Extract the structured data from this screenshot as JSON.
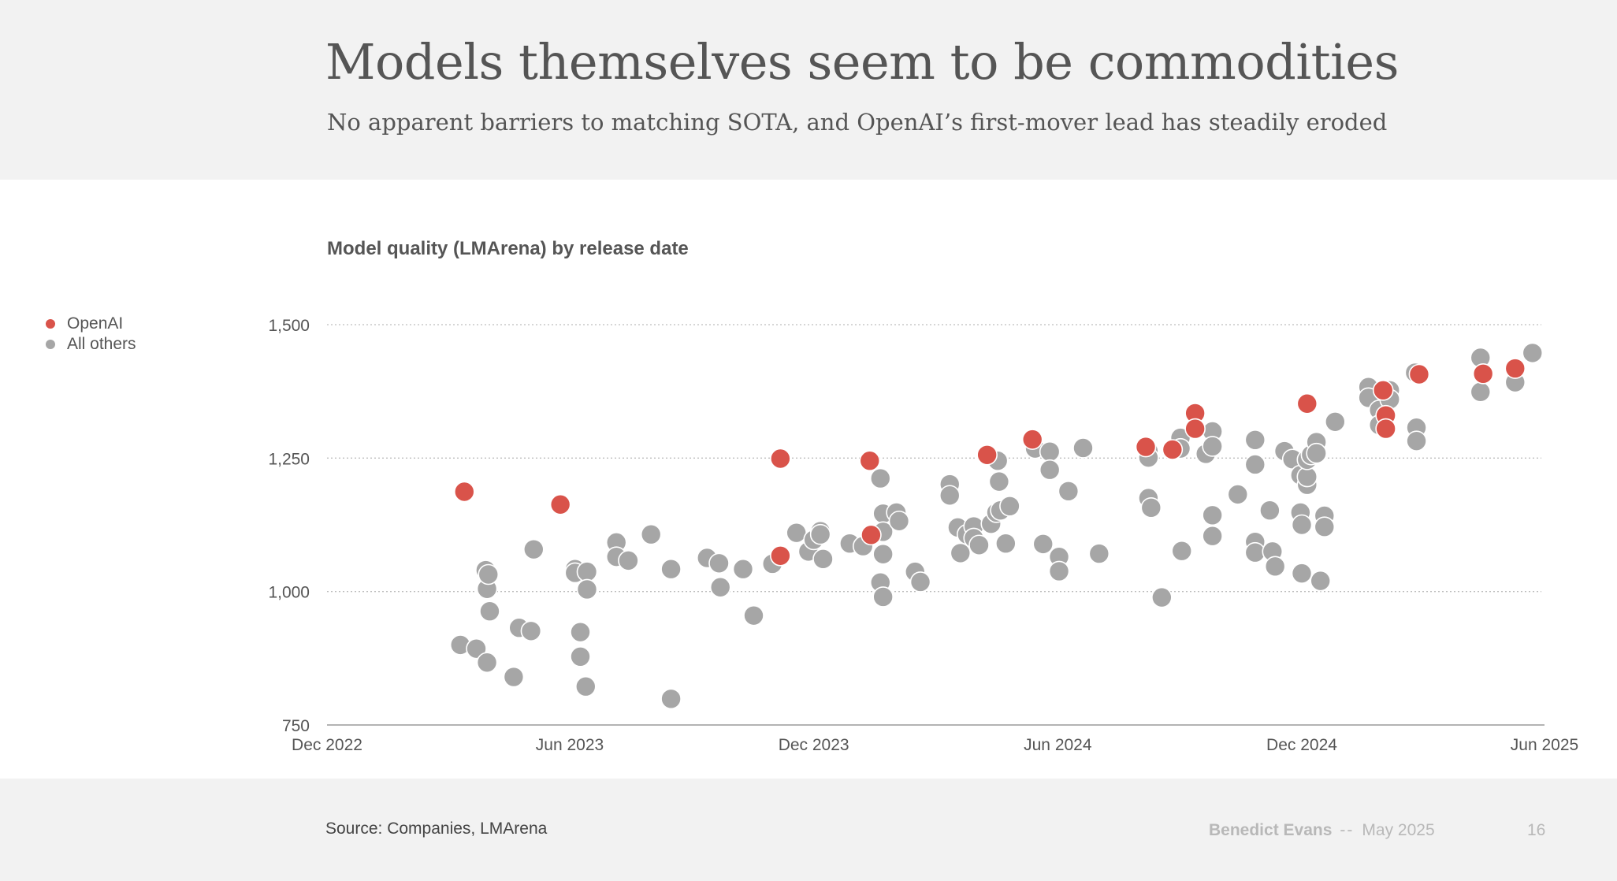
{
  "header": {
    "title": "Models themselves seem to be commodities",
    "subtitle": "No apparent barriers to matching SOTA, and OpenAI’s first-mover lead has steadily eroded"
  },
  "colors": {
    "openai": "#d9534a",
    "others": "#a6a6a6",
    "background": "#f2f2f2",
    "panel": "#ffffff",
    "text": "#555555"
  },
  "legend": {
    "position": "top-left",
    "items": [
      {
        "label": "OpenAI",
        "color": "#d9534a"
      },
      {
        "label": "All others",
        "color": "#a6a6a6"
      }
    ]
  },
  "chart_data": {
    "type": "scatter",
    "title": "Model quality (LMArena) by release date",
    "xlabel": "",
    "ylabel": "",
    "x_type": "date",
    "xlim": [
      "2022-12-01",
      "2025-06-01"
    ],
    "ylim": [
      750,
      1500
    ],
    "x_ticks": [
      {
        "value": "2022-12-01",
        "label": "Dec 2022"
      },
      {
        "value": "2023-06-01",
        "label": "Jun 2023"
      },
      {
        "value": "2023-12-01",
        "label": "Dec 2023"
      },
      {
        "value": "2024-06-01",
        "label": "Jun 2024"
      },
      {
        "value": "2024-12-01",
        "label": "Dec 2024"
      },
      {
        "value": "2025-06-01",
        "label": "Jun 2025"
      }
    ],
    "y_ticks": [
      {
        "value": 750,
        "label": "750"
      },
      {
        "value": 1000,
        "label": "1,000"
      },
      {
        "value": 1250,
        "label": "1,250"
      },
      {
        "value": 1500,
        "label": "1,500"
      }
    ],
    "grid": "horizontal dotted",
    "series": [
      {
        "name": "OpenAI",
        "color": "#d9534a",
        "points": [
          {
            "x": "2023-03-14",
            "y": 1187
          },
          {
            "x": "2023-05-25",
            "y": 1163
          },
          {
            "x": "2023-11-06",
            "y": 1067
          },
          {
            "x": "2023-11-06",
            "y": 1249
          },
          {
            "x": "2024-01-12",
            "y": 1245
          },
          {
            "x": "2024-01-13",
            "y": 1106
          },
          {
            "x": "2024-04-09",
            "y": 1256
          },
          {
            "x": "2024-05-13",
            "y": 1285
          },
          {
            "x": "2024-08-06",
            "y": 1271
          },
          {
            "x": "2024-08-26",
            "y": 1266
          },
          {
            "x": "2024-09-12",
            "y": 1334
          },
          {
            "x": "2024-09-12",
            "y": 1305
          },
          {
            "x": "2024-12-05",
            "y": 1352
          },
          {
            "x": "2025-01-31",
            "y": 1377
          },
          {
            "x": "2025-02-02",
            "y": 1330
          },
          {
            "x": "2025-02-02",
            "y": 1305
          },
          {
            "x": "2025-02-27",
            "y": 1407
          },
          {
            "x": "2025-04-16",
            "y": 1408
          },
          {
            "x": "2025-05-10",
            "y": 1418
          }
        ]
      },
      {
        "name": "All others",
        "color": "#a6a6a6",
        "points": [
          {
            "x": "2023-03-11",
            "y": 900
          },
          {
            "x": "2023-03-23",
            "y": 893
          },
          {
            "x": "2023-03-31",
            "y": 867
          },
          {
            "x": "2023-03-30",
            "y": 1040
          },
          {
            "x": "2023-03-31",
            "y": 1005
          },
          {
            "x": "2023-04-01",
            "y": 1032
          },
          {
            "x": "2023-04-02",
            "y": 963
          },
          {
            "x": "2023-04-20",
            "y": 840
          },
          {
            "x": "2023-04-24",
            "y": 932
          },
          {
            "x": "2023-05-03",
            "y": 926
          },
          {
            "x": "2023-05-05",
            "y": 1079
          },
          {
            "x": "2023-06-05",
            "y": 1042
          },
          {
            "x": "2023-06-05",
            "y": 1035
          },
          {
            "x": "2023-06-09",
            "y": 924
          },
          {
            "x": "2023-06-09",
            "y": 878
          },
          {
            "x": "2023-06-13",
            "y": 822
          },
          {
            "x": "2023-06-14",
            "y": 1037
          },
          {
            "x": "2023-06-14",
            "y": 1004
          },
          {
            "x": "2023-07-06",
            "y": 1092
          },
          {
            "x": "2023-07-06",
            "y": 1065
          },
          {
            "x": "2023-07-15",
            "y": 1058
          },
          {
            "x": "2023-08-01",
            "y": 1107
          },
          {
            "x": "2023-08-16",
            "y": 799
          },
          {
            "x": "2023-08-16",
            "y": 1042
          },
          {
            "x": "2023-09-12",
            "y": 1063
          },
          {
            "x": "2023-09-21",
            "y": 1053
          },
          {
            "x": "2023-09-22",
            "y": 1008
          },
          {
            "x": "2023-10-09",
            "y": 1042
          },
          {
            "x": "2023-10-17",
            "y": 955
          },
          {
            "x": "2023-10-31",
            "y": 1052
          },
          {
            "x": "2023-11-18",
            "y": 1110
          },
          {
            "x": "2023-11-27",
            "y": 1075
          },
          {
            "x": "2023-12-01",
            "y": 1097
          },
          {
            "x": "2023-12-06",
            "y": 1113
          },
          {
            "x": "2023-12-06",
            "y": 1107
          },
          {
            "x": "2023-12-08",
            "y": 1061
          },
          {
            "x": "2023-12-28",
            "y": 1090
          },
          {
            "x": "2024-01-07",
            "y": 1085
          },
          {
            "x": "2024-01-20",
            "y": 1212
          },
          {
            "x": "2024-01-20",
            "y": 1017
          },
          {
            "x": "2024-01-22",
            "y": 990
          },
          {
            "x": "2024-01-22",
            "y": 1146
          },
          {
            "x": "2024-01-22",
            "y": 1112
          },
          {
            "x": "2024-01-22",
            "y": 1070
          },
          {
            "x": "2024-02-01",
            "y": 1148
          },
          {
            "x": "2024-02-03",
            "y": 1132
          },
          {
            "x": "2024-02-15",
            "y": 1037
          },
          {
            "x": "2024-02-19",
            "y": 1018
          },
          {
            "x": "2024-03-12",
            "y": 1201
          },
          {
            "x": "2024-03-12",
            "y": 1180
          },
          {
            "x": "2024-03-18",
            "y": 1120
          },
          {
            "x": "2024-03-20",
            "y": 1072
          },
          {
            "x": "2024-03-25",
            "y": 1107
          },
          {
            "x": "2024-03-30",
            "y": 1122
          },
          {
            "x": "2024-03-30",
            "y": 1100
          },
          {
            "x": "2024-04-03",
            "y": 1087
          },
          {
            "x": "2024-04-12",
            "y": 1127
          },
          {
            "x": "2024-04-16",
            "y": 1148
          },
          {
            "x": "2024-04-17",
            "y": 1245
          },
          {
            "x": "2024-04-18",
            "y": 1206
          },
          {
            "x": "2024-04-19",
            "y": 1152
          },
          {
            "x": "2024-04-23",
            "y": 1090
          },
          {
            "x": "2024-04-26",
            "y": 1160
          },
          {
            "x": "2024-05-15",
            "y": 1268
          },
          {
            "x": "2024-05-21",
            "y": 1089
          },
          {
            "x": "2024-05-26",
            "y": 1262
          },
          {
            "x": "2024-05-26",
            "y": 1228
          },
          {
            "x": "2024-06-02",
            "y": 1065
          },
          {
            "x": "2024-06-02",
            "y": 1038
          },
          {
            "x": "2024-06-09",
            "y": 1188
          },
          {
            "x": "2024-06-20",
            "y": 1269
          },
          {
            "x": "2024-07-02",
            "y": 1071
          },
          {
            "x": "2024-08-08",
            "y": 1263
          },
          {
            "x": "2024-08-08",
            "y": 1251
          },
          {
            "x": "2024-08-08",
            "y": 1175
          },
          {
            "x": "2024-08-10",
            "y": 1157
          },
          {
            "x": "2024-08-18",
            "y": 989
          },
          {
            "x": "2024-09-01",
            "y": 1288
          },
          {
            "x": "2024-09-01",
            "y": 1268
          },
          {
            "x": "2024-09-02",
            "y": 1076
          },
          {
            "x": "2024-09-20",
            "y": 1258
          },
          {
            "x": "2024-09-25",
            "y": 1300
          },
          {
            "x": "2024-09-25",
            "y": 1272
          },
          {
            "x": "2024-09-25",
            "y": 1143
          },
          {
            "x": "2024-09-25",
            "y": 1104
          },
          {
            "x": "2024-10-14",
            "y": 1182
          },
          {
            "x": "2024-10-27",
            "y": 1284
          },
          {
            "x": "2024-10-27",
            "y": 1238
          },
          {
            "x": "2024-10-27",
            "y": 1093
          },
          {
            "x": "2024-10-27",
            "y": 1073
          },
          {
            "x": "2024-11-07",
            "y": 1152
          },
          {
            "x": "2024-11-09",
            "y": 1075
          },
          {
            "x": "2024-11-11",
            "y": 1047
          },
          {
            "x": "2024-11-18",
            "y": 1263
          },
          {
            "x": "2024-11-24",
            "y": 1248
          },
          {
            "x": "2024-11-30",
            "y": 1148
          },
          {
            "x": "2024-12-01",
            "y": 1125
          },
          {
            "x": "2024-12-01",
            "y": 1034
          },
          {
            "x": "2024-11-30",
            "y": 1218
          },
          {
            "x": "2024-12-05",
            "y": 1200
          },
          {
            "x": "2024-12-05",
            "y": 1215
          },
          {
            "x": "2024-12-05",
            "y": 1247
          },
          {
            "x": "2024-12-08",
            "y": 1256
          },
          {
            "x": "2024-12-12",
            "y": 1280
          },
          {
            "x": "2024-12-12",
            "y": 1259
          },
          {
            "x": "2024-12-15",
            "y": 1020
          },
          {
            "x": "2024-12-18",
            "y": 1142
          },
          {
            "x": "2024-12-18",
            "y": 1121
          },
          {
            "x": "2024-12-26",
            "y": 1318
          },
          {
            "x": "2025-01-20",
            "y": 1383
          },
          {
            "x": "2025-01-20",
            "y": 1363
          },
          {
            "x": "2025-01-28",
            "y": 1340
          },
          {
            "x": "2025-01-28",
            "y": 1312
          },
          {
            "x": "2025-02-05",
            "y": 1377
          },
          {
            "x": "2025-02-05",
            "y": 1360
          },
          {
            "x": "2025-02-24",
            "y": 1410
          },
          {
            "x": "2025-02-25",
            "y": 1307
          },
          {
            "x": "2025-02-25",
            "y": 1282
          },
          {
            "x": "2025-04-14",
            "y": 1438
          },
          {
            "x": "2025-04-14",
            "y": 1374
          },
          {
            "x": "2025-05-10",
            "y": 1392
          },
          {
            "x": "2025-05-23",
            "y": 1447
          }
        ]
      }
    ]
  },
  "footer": {
    "source": "Source: Companies, LMArena",
    "author": "Benedict Evans",
    "separator": "--",
    "date": "May 2025",
    "page": "16"
  }
}
